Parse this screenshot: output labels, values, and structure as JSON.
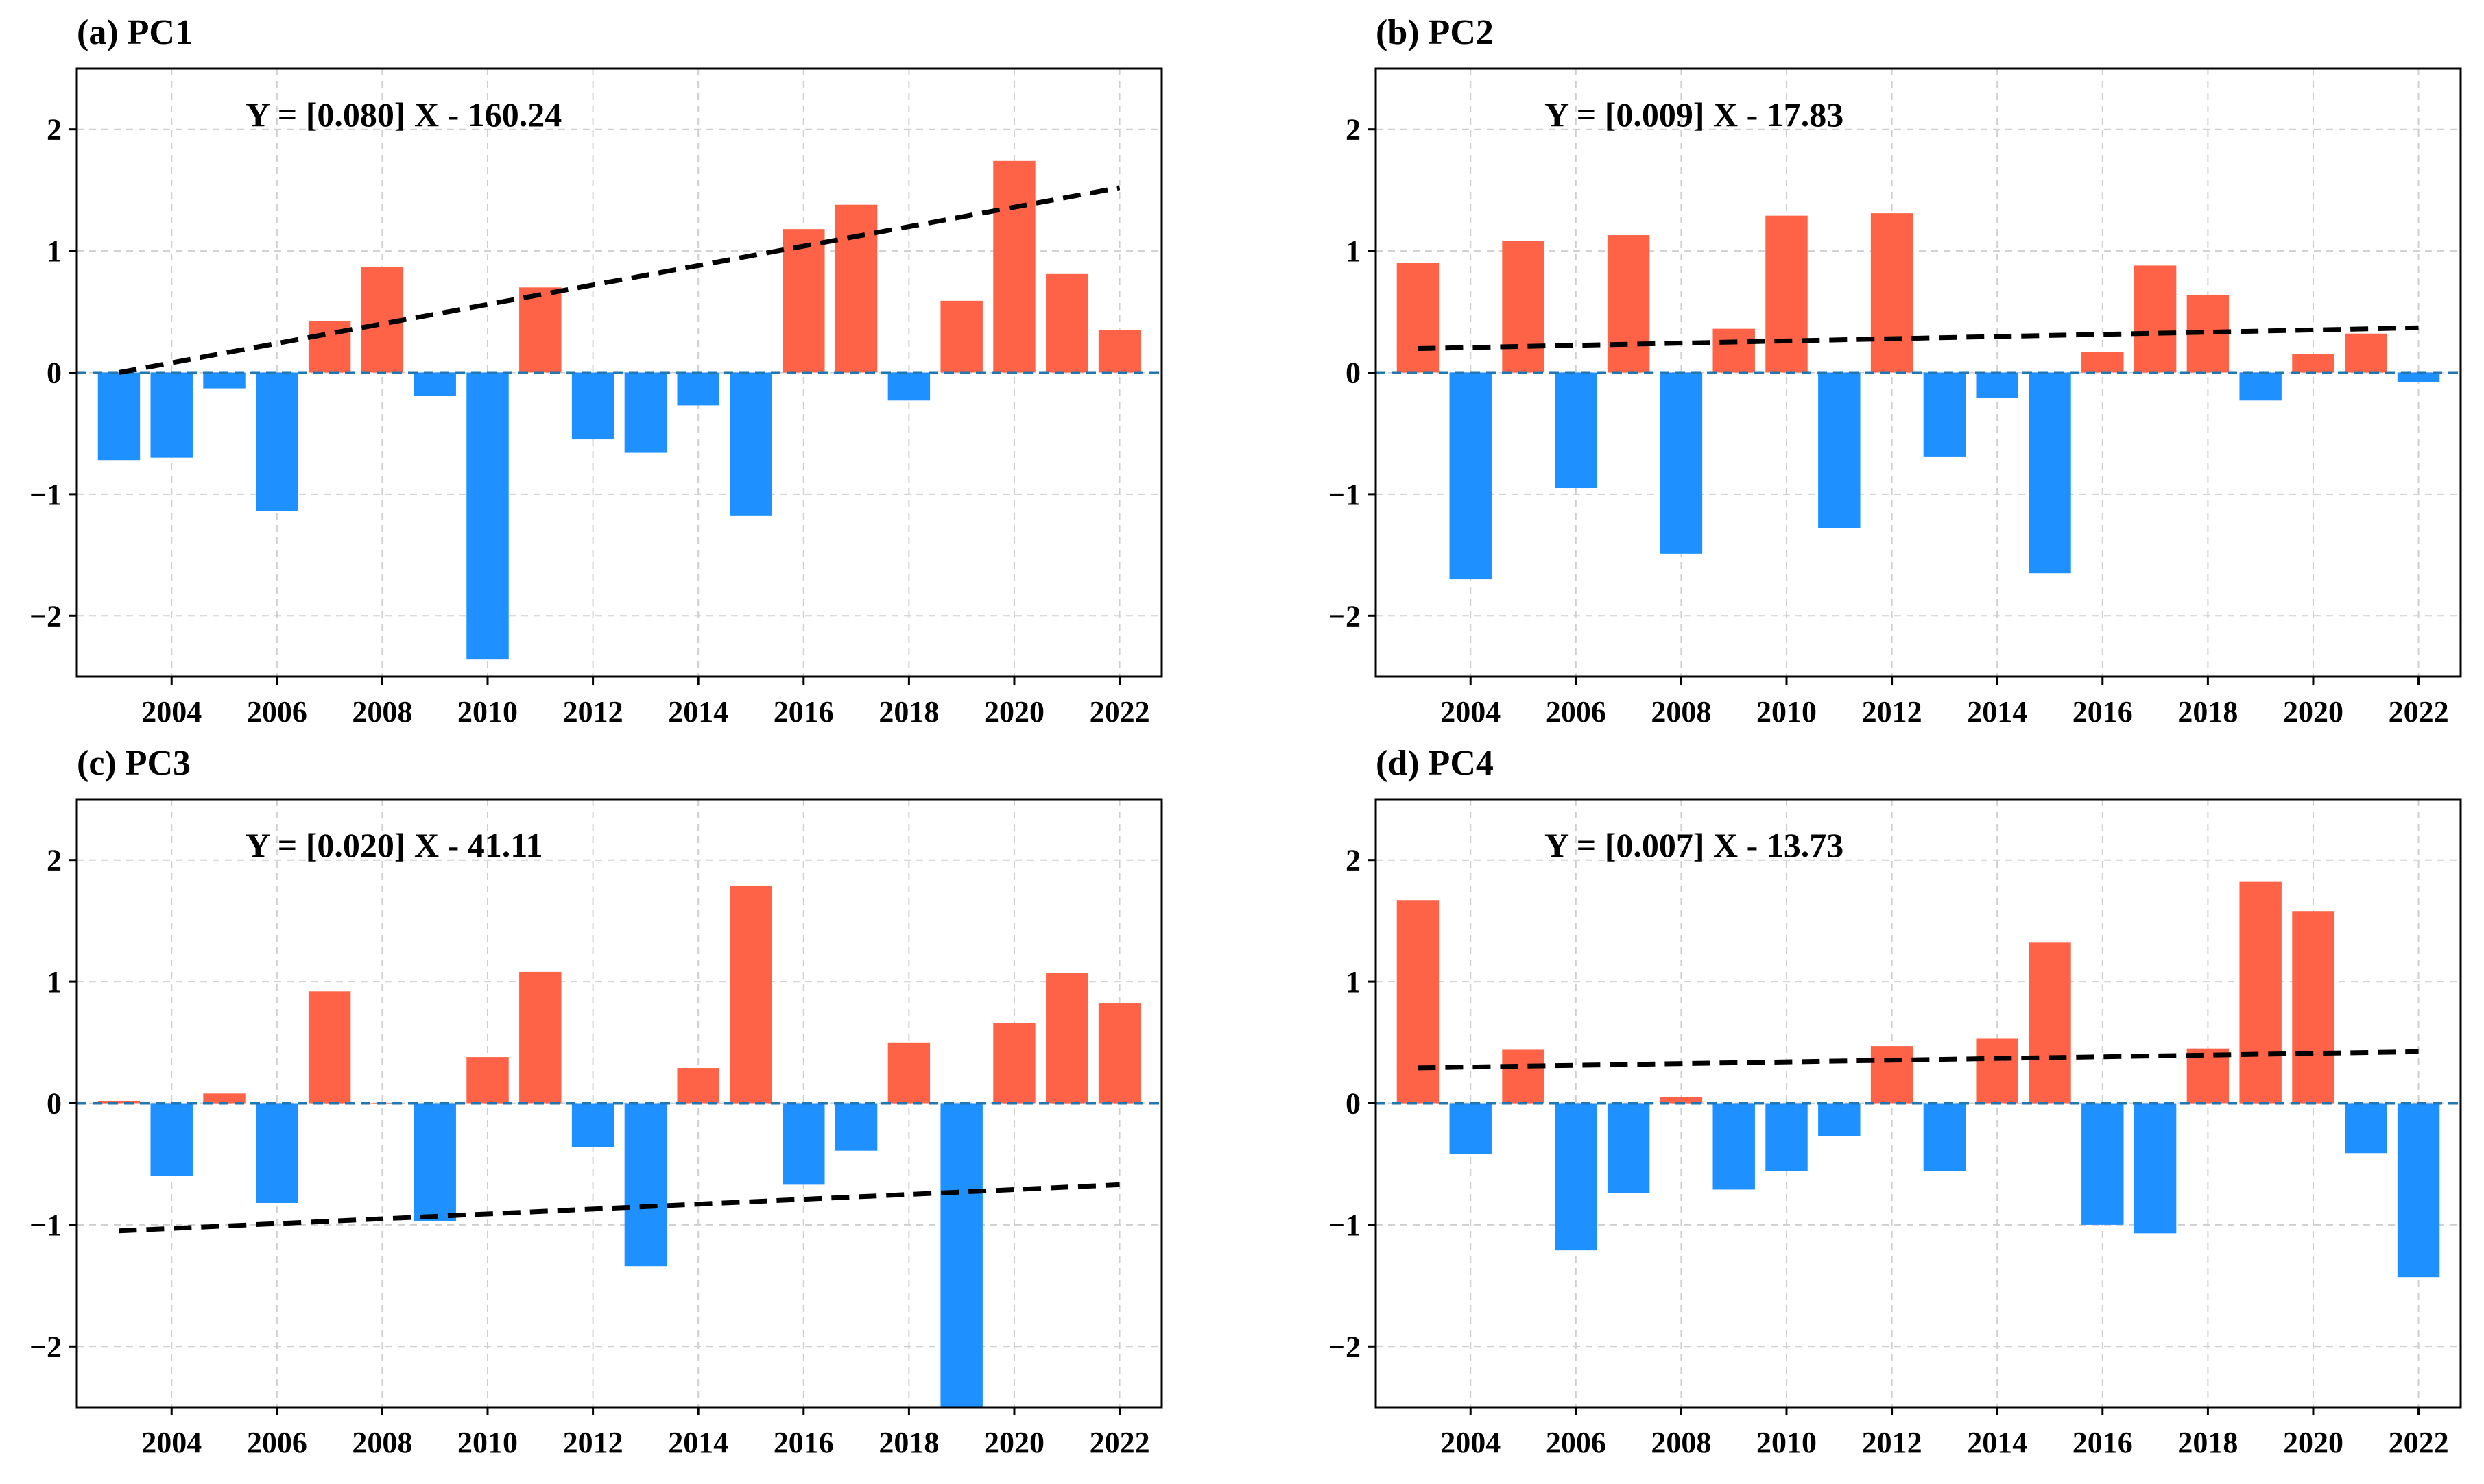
{
  "colors": {
    "positive": "#FF6347",
    "negative": "#1E90FF",
    "zero_line": "#1f77b4",
    "trend": "#000000",
    "grid": "#cfcfcf"
  },
  "chart_data": [
    {
      "type": "bar",
      "title": "(a) PC1",
      "equation": "Y = [0.080] X - 160.24",
      "slope": 0.08,
      "intercept": -160.24,
      "x": [
        2003,
        2004,
        2005,
        2006,
        2007,
        2008,
        2009,
        2010,
        2011,
        2012,
        2013,
        2014,
        2015,
        2016,
        2017,
        2018,
        2019,
        2020,
        2021,
        2022
      ],
      "values": [
        -0.72,
        -0.7,
        -0.13,
        -1.14,
        0.42,
        0.87,
        -0.19,
        -2.36,
        0.7,
        -0.55,
        -0.66,
        -0.27,
        -1.18,
        1.18,
        1.38,
        -0.23,
        0.59,
        1.74,
        0.81,
        0.35
      ],
      "xticks": [
        "2004",
        "2006",
        "2008",
        "2010",
        "2012",
        "2014",
        "2016",
        "2018",
        "2020",
        "2022"
      ],
      "yticks": [
        "−2",
        "−1",
        "0",
        "1",
        "2"
      ],
      "ylim": [
        -2.5,
        2.5
      ],
      "grid": true
    },
    {
      "type": "bar",
      "title": "(b) PC2",
      "equation": "Y = [0.009] X - 17.83",
      "slope": 0.009,
      "intercept": -17.83,
      "x": [
        2003,
        2004,
        2005,
        2006,
        2007,
        2008,
        2009,
        2010,
        2011,
        2012,
        2013,
        2014,
        2015,
        2016,
        2017,
        2018,
        2019,
        2020,
        2021,
        2022
      ],
      "values": [
        0.9,
        -1.7,
        1.08,
        -0.95,
        1.13,
        -1.49,
        0.36,
        1.29,
        -1.28,
        1.31,
        -0.69,
        -0.21,
        -1.65,
        0.17,
        0.88,
        0.64,
        -0.23,
        0.15,
        0.32,
        -0.08
      ],
      "xticks": [
        "2004",
        "2006",
        "2008",
        "2010",
        "2012",
        "2014",
        "2016",
        "2018",
        "2020",
        "2022"
      ],
      "yticks": [
        "−2",
        "−1",
        "0",
        "1",
        "2"
      ],
      "ylim": [
        -2.5,
        2.5
      ],
      "grid": true
    },
    {
      "type": "bar",
      "title": "(c) PC3",
      "equation": "Y = [0.020] X - 41.11",
      "slope": 0.02,
      "intercept": -41.11,
      "x": [
        2003,
        2004,
        2005,
        2006,
        2007,
        2008,
        2009,
        2010,
        2011,
        2012,
        2013,
        2014,
        2015,
        2016,
        2017,
        2018,
        2019,
        2020,
        2021,
        2022
      ],
      "values": [
        0.02,
        -0.6,
        0.08,
        -0.82,
        0.92,
        0.0,
        -0.97,
        0.38,
        1.08,
        -0.36,
        -1.34,
        0.29,
        1.79,
        -0.67,
        -0.39,
        0.5,
        -2.55,
        0.66,
        1.07,
        0.82
      ],
      "xticks": [
        "2004",
        "2006",
        "2008",
        "2010",
        "2012",
        "2014",
        "2016",
        "2018",
        "2020",
        "2022"
      ],
      "yticks": [
        "−2",
        "−1",
        "0",
        "1",
        "2"
      ],
      "ylim": [
        -2.5,
        2.5
      ],
      "grid": true
    },
    {
      "type": "bar",
      "title": "(d) PC4",
      "equation": "Y = [0.007] X - 13.73",
      "slope": 0.007,
      "intercept": -13.73,
      "x": [
        2003,
        2004,
        2005,
        2006,
        2007,
        2008,
        2009,
        2010,
        2011,
        2012,
        2013,
        2014,
        2015,
        2016,
        2017,
        2018,
        2019,
        2020,
        2021,
        2022
      ],
      "values": [
        1.67,
        -0.42,
        0.44,
        -1.21,
        -0.74,
        0.05,
        -0.71,
        -0.56,
        -0.27,
        0.47,
        -0.56,
        0.53,
        1.32,
        -1.0,
        -1.07,
        0.45,
        1.82,
        1.58,
        -0.41,
        -1.43
      ],
      "xticks": [
        "2004",
        "2006",
        "2008",
        "2010",
        "2012",
        "2014",
        "2016",
        "2018",
        "2020",
        "2022"
      ],
      "yticks": [
        "−2",
        "−1",
        "0",
        "1",
        "2"
      ],
      "ylim": [
        -2.5,
        2.5
      ],
      "grid": true
    }
  ]
}
